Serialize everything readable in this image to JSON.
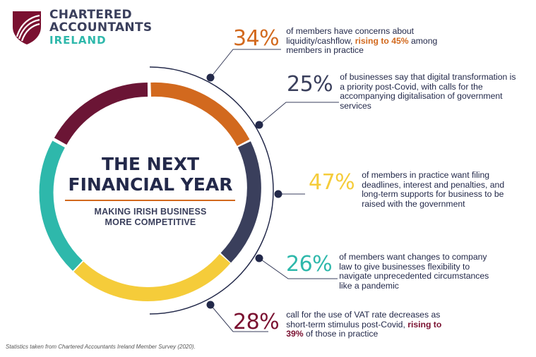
{
  "brand": {
    "line1": "CHARTERED",
    "line2": "ACCOUNTANTS",
    "line3": "IRELAND"
  },
  "center": {
    "title_line1": "THE NEXT",
    "title_line2": "FINANCIAL YEAR",
    "subtitle_line1": "MAKING IRISH BUSINESS",
    "subtitle_line2": "MORE COMPETITIVE"
  },
  "stats": [
    {
      "pct": "34%",
      "text": "of members have concerns about liquidity/cashflow, ",
      "highlight": "rising to 45%",
      "text_after": " among members in practice",
      "color": "#d2691e"
    },
    {
      "pct": "25%",
      "text": "of businesses say that digital transformation is a priority post-Covid, with calls for the accompanying digitalisation of government services",
      "color": "#3a3f5c"
    },
    {
      "pct": "47%",
      "text": "of members in practice want filing deadlines, interest and penalties, and long-term supports for business to be raised with the government",
      "color": "#f5cc3a"
    },
    {
      "pct": "26%",
      "text": "of members want changes to company law to give businesses flexibility to navigate unprecedented circumstances like a pandemic",
      "color": "#2eb8ab"
    },
    {
      "pct": "28%",
      "text": "call for the use of VAT rate decreases as short-term stimulus post-Covid, ",
      "highlight": "rising to 39%",
      "text_after": " of those in practice",
      "color": "#7a1030"
    }
  ],
  "ring_colors": {
    "orange": "#d2691e",
    "navy": "#3a3f5c",
    "yellow": "#f5cc3a",
    "teal": "#2eb8ab",
    "maroon": "#6b1535"
  },
  "footnote": "Statistics taken from Chartered Accountants Ireland Member Survey (2020)."
}
